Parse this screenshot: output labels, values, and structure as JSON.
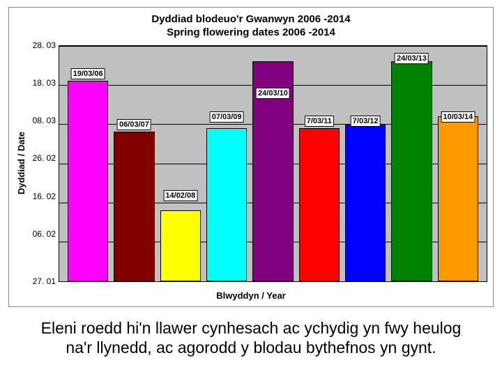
{
  "chart": {
    "type": "bar",
    "title_line1": "Dyddiad blodeuo'r Gwanwyn 2006 -2014",
    "title_line2": "Spring flowering dates 2006 -2014",
    "y_label": "Dyddiad / Date",
    "x_label": "Blwyddyn / Year",
    "y_ticks": [
      "28. 03",
      "18. 03",
      "08. 03",
      "26. 02",
      "16. 02",
      "06. 02",
      "27. 01"
    ],
    "y_min_day": 27,
    "y_max_day": 87,
    "plot_background": "#c0c0c0",
    "grid_color": "#000000",
    "bars": [
      {
        "label": "19/03/06",
        "day_of_year": 78,
        "color": "#ff00ff"
      },
      {
        "label": "06/03/07",
        "day_of_year": 65,
        "color": "#800000"
      },
      {
        "label": "14/02/08",
        "day_of_year": 45,
        "color": "#ffff00"
      },
      {
        "label": "07/03/09",
        "day_of_year": 66,
        "color": "#00ffff"
      },
      {
        "label": "24/03/10",
        "day_of_year": 83,
        "color": "#800080"
      },
      {
        "label": "7/03/11",
        "day_of_year": 66,
        "color": "#ff0000"
      },
      {
        "label": "7/03/12",
        "day_of_year": 67,
        "color": "#0000ff"
      },
      {
        "label": "24/03/13",
        "day_of_year": 83,
        "color": "#008000"
      },
      {
        "label": "10/03/14",
        "day_of_year": 69,
        "color": "#ff9900"
      }
    ],
    "label_y_overrides": {
      "0": 78,
      "1": 65,
      "2": 47,
      "3": 67,
      "4": 73,
      "5": 66,
      "6": 66,
      "7": 82,
      "8": 67
    }
  },
  "caption": {
    "line1": "Eleni roedd hi'n llawer cynhesach ac ychydig yn fwy heulog",
    "line2": "na'r llynedd, ac agorodd y blodau bythefnos yn gynt."
  }
}
